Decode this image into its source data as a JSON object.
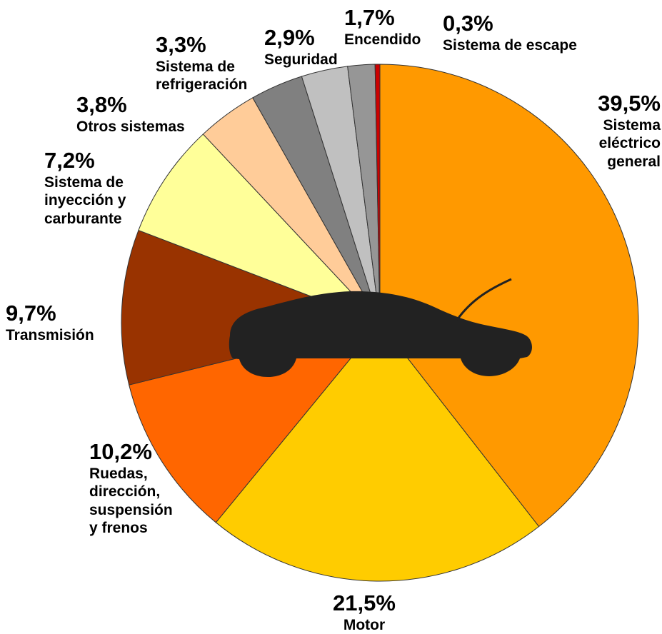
{
  "chart_data": {
    "type": "pie",
    "start": "top",
    "direction": "clockwise",
    "slices": [
      {
        "label": "Sistema eléctrico general",
        "pct_label": "39,5%",
        "value": 39.5,
        "color": "#ff9900"
      },
      {
        "label": "Motor",
        "pct_label": "21,5%",
        "value": 21.5,
        "color": "#ffcc00"
      },
      {
        "label": "Ruedas, dirección, suspensión y frenos",
        "pct_label": "10,2%",
        "value": 10.2,
        "color": "#ff6600"
      },
      {
        "label": "Transmisión",
        "pct_label": "9,7%",
        "value": 9.7,
        "color": "#993300"
      },
      {
        "label": "Sistema de inyección y carburante",
        "pct_label": "7,2%",
        "value": 7.2,
        "color": "#ffff99"
      },
      {
        "label": "Otros sistemas",
        "pct_label": "3,8%",
        "value": 3.8,
        "color": "#ffcc99"
      },
      {
        "label": "Sistema de refrigeración",
        "pct_label": "3,3%",
        "value": 3.3,
        "color": "#808080"
      },
      {
        "label": "Seguridad",
        "pct_label": "2,9%",
        "value": 2.9,
        "color": "#c0c0c0"
      },
      {
        "label": "Encendido",
        "pct_label": "1,7%",
        "value": 1.7,
        "color": "#969696"
      },
      {
        "label": "Sistema de escape",
        "pct_label": "0,3%",
        "value": 0.3,
        "color": "#cc0000"
      }
    ]
  },
  "labels": {
    "electrico": {
      "pct": "39,5%",
      "name": "Sistema\neléctrico\ngeneral"
    },
    "motor": {
      "pct": "21,5%",
      "name": "Motor"
    },
    "ruedas": {
      "pct": "10,2%",
      "name": "Ruedas,\ndirección,\nsuspensión\ny frenos"
    },
    "transmision": {
      "pct": "9,7%",
      "name": "Transmisión"
    },
    "inyeccion": {
      "pct": "7,2%",
      "name": "Sistema de\ninyección y\ncarburante"
    },
    "otros": {
      "pct": "3,8%",
      "name": "Otros sistemas"
    },
    "refrigeracion": {
      "pct": "3,3%",
      "name": "Sistema de\nrefrigeración"
    },
    "seguridad": {
      "pct": "2,9%",
      "name": "Seguridad"
    },
    "encendido": {
      "pct": "1,7%",
      "name": "Encendido"
    },
    "escape": {
      "pct": "0,3%",
      "name": "Sistema de escape"
    }
  },
  "car_icon": {
    "icon": "car-silhouette-icon",
    "color": "#222222"
  }
}
